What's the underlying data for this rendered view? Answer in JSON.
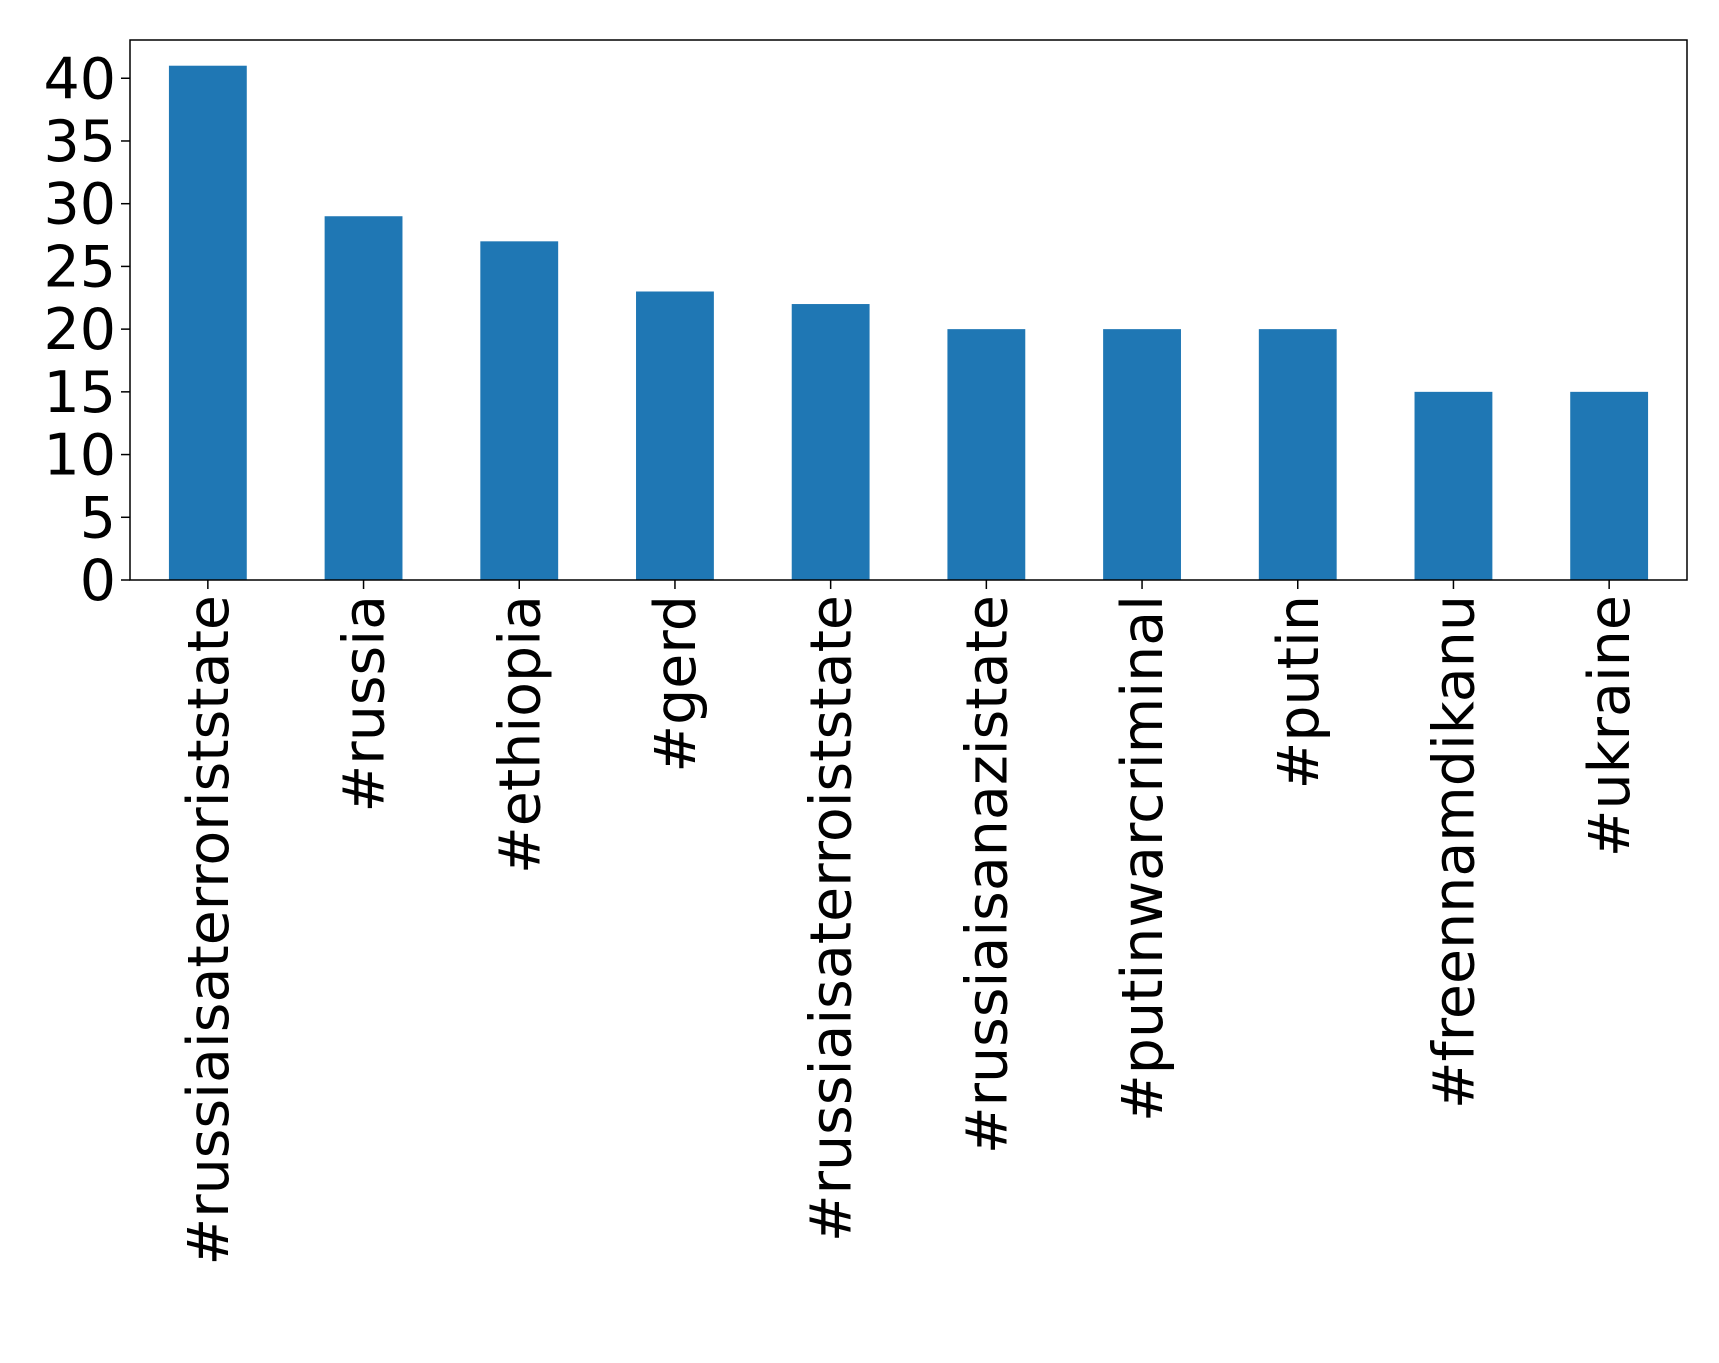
{
  "chart_data": {
    "type": "bar",
    "categories": [
      "#russiaisaterroriststate",
      "#russia",
      "#ethiopia",
      "#gerd",
      "#russiaisaterroiststate",
      "#russiaisanazistate",
      "#putinwarcriminal",
      "#putin",
      "#freennamdikanu",
      "#ukraine"
    ],
    "values": [
      41,
      29,
      27,
      23,
      22,
      20,
      20,
      20,
      15,
      15
    ],
    "color": "#1f77b4",
    "ylim": [
      0,
      43.05
    ],
    "yticks": [
      0,
      5,
      10,
      15,
      20,
      25,
      30,
      35,
      40
    ],
    "grid": false
  }
}
